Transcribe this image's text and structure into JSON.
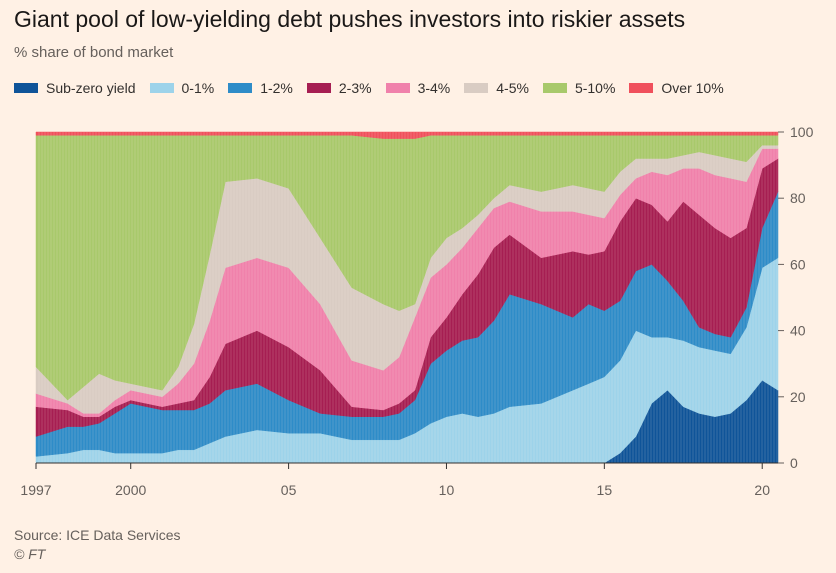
{
  "title": "Giant pool of low-yielding debt pushes investors into riskier assets",
  "subtitle": "% share of bond market",
  "source": "Source: ICE Data Services",
  "credit": "© FT",
  "chart_data": {
    "type": "area",
    "stacked": true,
    "title": "Giant pool of low-yielding debt pushes investors into riskier assets",
    "ylabel": "% share of bond market",
    "ylim": [
      0,
      100
    ],
    "xlim": [
      1997.0,
      2020.5
    ],
    "yticks": [
      0,
      20,
      40,
      60,
      80,
      100
    ],
    "xticks": [
      {
        "value": 1997,
        "label": "1997"
      },
      {
        "value": 2000,
        "label": "2000"
      },
      {
        "value": 2005,
        "label": "05"
      },
      {
        "value": 2010,
        "label": "10"
      },
      {
        "value": 2015,
        "label": "15"
      },
      {
        "value": 2020,
        "label": "20"
      }
    ],
    "legend_position": "top",
    "x": [
      1997.0,
      1998.0,
      1998.5,
      1999.0,
      1999.5,
      2000.0,
      2001.0,
      2001.5,
      2002.0,
      2002.5,
      2003.0,
      2004.0,
      2005.0,
      2006.0,
      2007.0,
      2008.0,
      2008.5,
      2009.0,
      2009.5,
      2010.0,
      2010.5,
      2011.0,
      2011.5,
      2012.0,
      2013.0,
      2014.0,
      2014.5,
      2015.0,
      2015.5,
      2016.0,
      2016.5,
      2017.0,
      2017.5,
      2018.0,
      2018.5,
      2019.0,
      2019.5,
      2020.0,
      2020.5
    ],
    "series": [
      {
        "name": "Sub-zero yield",
        "color": "#0f5499",
        "values": [
          0,
          0,
          0,
          0,
          0,
          0,
          0,
          0,
          0,
          0,
          0,
          0,
          0,
          0,
          0,
          0,
          0,
          0,
          0,
          0,
          0,
          0,
          0,
          0,
          0,
          0,
          0,
          0,
          3,
          8,
          18,
          22,
          17,
          15,
          14,
          15,
          19,
          25,
          22
        ]
      },
      {
        "name": "0-1%",
        "color": "#9dd3ea",
        "values": [
          2,
          3,
          4,
          4,
          3,
          3,
          3,
          4,
          4,
          6,
          8,
          10,
          9,
          9,
          7,
          7,
          7,
          9,
          12,
          14,
          15,
          14,
          15,
          17,
          18,
          22,
          24,
          26,
          28,
          32,
          20,
          16,
          20,
          20,
          20,
          18,
          22,
          34,
          40
        ]
      },
      {
        "name": "1-2%",
        "color": "#2e8cc8",
        "values": [
          6,
          8,
          7,
          8,
          12,
          15,
          13,
          12,
          12,
          12,
          14,
          14,
          10,
          6,
          7,
          7,
          8,
          10,
          18,
          20,
          22,
          24,
          28,
          34,
          30,
          22,
          24,
          20,
          18,
          18,
          22,
          17,
          12,
          6,
          5,
          5,
          6,
          12,
          20
        ]
      },
      {
        "name": "2-3%",
        "color": "#a61e52",
        "values": [
          9,
          5,
          3,
          2,
          2,
          1,
          1,
          2,
          3,
          8,
          14,
          16,
          16,
          13,
          3,
          2,
          3,
          3,
          8,
          10,
          14,
          19,
          22,
          18,
          14,
          20,
          15,
          18,
          24,
          22,
          18,
          18,
          30,
          34,
          32,
          30,
          24,
          18,
          10
        ]
      },
      {
        "name": "3-4%",
        "color": "#f081ab",
        "values": [
          4,
          2,
          1,
          1,
          2,
          3,
          3,
          6,
          11,
          17,
          23,
          22,
          24,
          20,
          14,
          12,
          14,
          22,
          18,
          16,
          14,
          14,
          12,
          10,
          14,
          12,
          12,
          10,
          8,
          6,
          10,
          14,
          10,
          14,
          16,
          18,
          14,
          6,
          3
        ]
      },
      {
        "name": "4-5%",
        "color": "#d9ccc3",
        "values": [
          8,
          1,
          8,
          12,
          6,
          2,
          2,
          5,
          12,
          20,
          26,
          24,
          24,
          20,
          22,
          20,
          14,
          4,
          6,
          8,
          6,
          4,
          3,
          5,
          6,
          8,
          8,
          8,
          7,
          6,
          4,
          5,
          4,
          5,
          6,
          6,
          6,
          1,
          1
        ]
      },
      {
        "name": "5-10%",
        "color": "#a8c96b",
        "values": [
          70,
          80,
          76,
          72,
          74,
          75,
          77,
          70,
          57,
          36,
          14,
          13,
          16,
          31,
          46,
          50,
          52,
          50,
          37,
          31,
          28,
          24,
          19,
          15,
          17,
          15,
          16,
          17,
          11,
          7,
          7,
          7,
          6,
          5,
          6,
          7,
          8,
          3,
          3
        ]
      },
      {
        "name": "Over 10%",
        "color": "#f0505c",
        "values": [
          1,
          1,
          1,
          1,
          1,
          1,
          1,
          1,
          1,
          1,
          1,
          1,
          1,
          1,
          1,
          2,
          2,
          2,
          1,
          1,
          1,
          1,
          1,
          1,
          1,
          1,
          1,
          1,
          1,
          1,
          1,
          1,
          1,
          1,
          1,
          1,
          1,
          1,
          1
        ]
      }
    ]
  }
}
